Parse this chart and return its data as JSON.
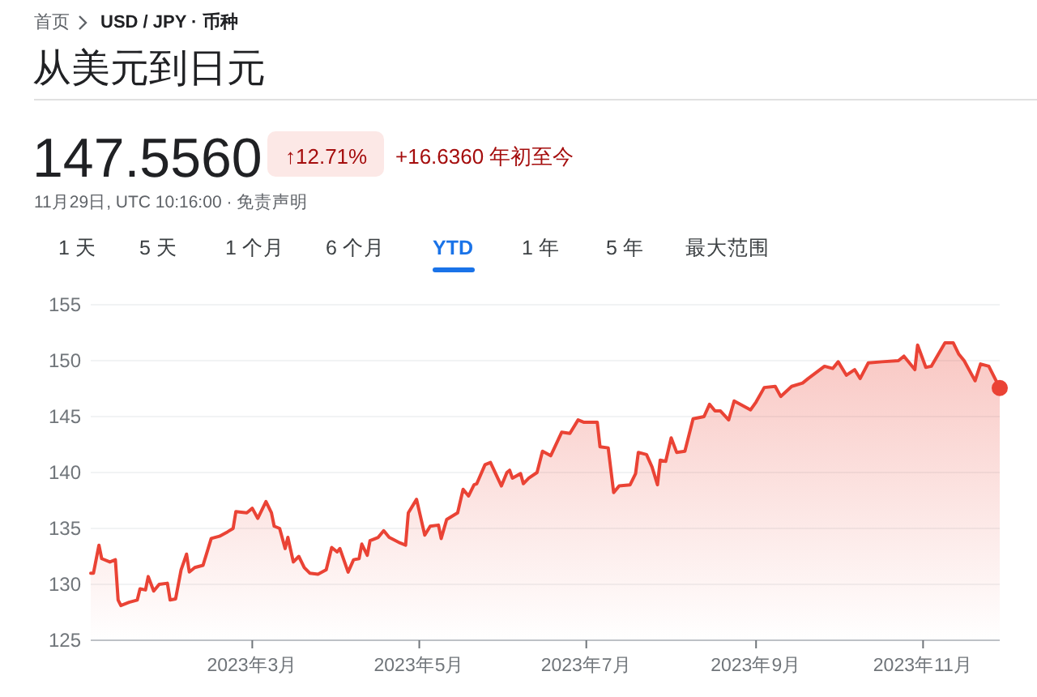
{
  "chart_data": {
    "type": "area",
    "title": "从美元到日元",
    "annotations": [
      "首页",
      "USD / JPY · 币种",
      "147.5560",
      "↑12.71%",
      "+16.6360 年初至今",
      "11月29日, UTC 10:16:00 · 免责声明",
      "1 天",
      "5 天",
      "1 个月",
      "6 个月",
      "YTD",
      "1 年",
      "5 年",
      "最大范围"
    ],
    "x": [
      "2023-01-01",
      "2023-01-02",
      "2023-01-04",
      "2023-01-05",
      "2023-01-08",
      "2023-01-10",
      "2023-01-11",
      "2023-01-12",
      "2023-01-15",
      "2023-01-18",
      "2023-01-19",
      "2023-01-21",
      "2023-01-22",
      "2023-01-24",
      "2023-01-26",
      "2023-01-29",
      "2023-01-30",
      "2023-02-01",
      "2023-02-03",
      "2023-02-05",
      "2023-02-06",
      "2023-02-08",
      "2023-02-11",
      "2023-02-14",
      "2023-02-17",
      "2023-02-20",
      "2023-02-22",
      "2023-02-23",
      "2023-02-27",
      "2023-03-01",
      "2023-03-03",
      "2023-03-06",
      "2023-03-08",
      "2023-03-09",
      "2023-03-11",
      "2023-03-13",
      "2023-03-14",
      "2023-03-16",
      "2023-03-18",
      "2023-03-20",
      "2023-03-22",
      "2023-03-25",
      "2023-03-28",
      "2023-03-30",
      "2023-04-01",
      "2023-04-02",
      "2023-04-05",
      "2023-04-07",
      "2023-04-09",
      "2023-04-10",
      "2023-04-12",
      "2023-04-13",
      "2023-04-16",
      "2023-04-18",
      "2023-04-20",
      "2023-04-24",
      "2023-04-26",
      "2023-04-27",
      "2023-04-30",
      "2023-05-03",
      "2023-05-05",
      "2023-05-08",
      "2023-05-09",
      "2023-05-11",
      "2023-05-15",
      "2023-05-17",
      "2023-05-19",
      "2023-05-21",
      "2023-05-22",
      "2023-05-25",
      "2023-05-27",
      "2023-05-31",
      "2023-06-02",
      "2023-06-03",
      "2023-06-04",
      "2023-06-07",
      "2023-06-08",
      "2023-06-10",
      "2023-06-13",
      "2023-06-15",
      "2023-06-18",
      "2023-06-22",
      "2023-06-25",
      "2023-06-28",
      "2023-06-30",
      "2023-07-05",
      "2023-07-06",
      "2023-07-09",
      "2023-07-11",
      "2023-07-13",
      "2023-07-17",
      "2023-07-19",
      "2023-07-20",
      "2023-07-23",
      "2023-07-25",
      "2023-07-27",
      "2023-07-28",
      "2023-07-30",
      "2023-08-01",
      "2023-08-03",
      "2023-08-06",
      "2023-08-09",
      "2023-08-13",
      "2023-08-15",
      "2023-08-17",
      "2023-08-19",
      "2023-08-22",
      "2023-08-24",
      "2023-08-27",
      "2023-08-30",
      "2023-09-01",
      "2023-09-04",
      "2023-09-08",
      "2023-09-10",
      "2023-09-14",
      "2023-09-18",
      "2023-09-20",
      "2023-09-26",
      "2023-09-29",
      "2023-10-01",
      "2023-10-04",
      "2023-10-07",
      "2023-10-09",
      "2023-10-12",
      "2023-10-17",
      "2023-10-23",
      "2023-10-25",
      "2023-10-29",
      "2023-10-30",
      "2023-11-02",
      "2023-11-04",
      "2023-11-09",
      "2023-11-12",
      "2023-11-14",
      "2023-11-16",
      "2023-11-20",
      "2023-11-22",
      "2023-11-25",
      "2023-11-29"
    ],
    "series": [
      {
        "color": "#ea4335",
        "values": [
          131.0,
          131.0,
          133.5,
          132.3,
          132.0,
          132.2,
          128.6,
          128.1,
          128.4,
          128.6,
          129.6,
          129.5,
          130.7,
          129.4,
          130.0,
          130.1,
          128.6,
          128.7,
          131.3,
          132.7,
          131.1,
          131.5,
          131.7,
          134.1,
          134.3,
          134.7,
          135.0,
          136.5,
          136.4,
          136.8,
          135.9,
          137.4,
          136.4,
          135.2,
          135.0,
          133.2,
          134.2,
          132.0,
          132.5,
          131.5,
          131.0,
          130.9,
          131.3,
          133.3,
          132.9,
          133.2,
          131.1,
          132.2,
          132.3,
          133.6,
          132.6,
          133.9,
          134.2,
          134.8,
          134.2,
          133.7,
          133.5,
          136.4,
          137.6,
          134.4,
          135.2,
          135.3,
          134.1,
          135.8,
          136.4,
          138.5,
          137.9,
          138.9,
          139.0,
          140.7,
          140.9,
          138.8,
          140.0,
          140.2,
          139.5,
          139.9,
          139.0,
          139.5,
          140.0,
          141.9,
          141.5,
          143.6,
          143.5,
          144.7,
          144.5,
          144.5,
          142.3,
          142.2,
          138.2,
          138.8,
          138.9,
          139.9,
          141.8,
          141.6,
          140.5,
          138.9,
          141.1,
          141.0,
          143.1,
          141.8,
          141.9,
          144.8,
          145.0,
          146.1,
          145.5,
          145.5,
          144.7,
          146.4,
          146.0,
          145.6,
          146.3,
          147.6,
          147.7,
          146.8,
          147.7,
          148.0,
          148.4,
          149.5,
          149.3,
          149.9,
          148.7,
          149.2,
          148.4,
          149.8,
          149.9,
          150.0,
          150.4,
          149.2,
          151.4,
          149.4,
          149.5,
          151.6,
          151.6,
          150.6,
          150.0,
          148.2,
          149.7,
          149.5,
          147.556
        ]
      }
    ],
    "xlim": [
      "2023-01-01",
      "2023-11-29"
    ],
    "xticks": [
      {
        "value": "2023-03-01",
        "label": "2023年3月"
      },
      {
        "value": "2023-05-01",
        "label": "2023年5月"
      },
      {
        "value": "2023-07-01",
        "label": "2023年7月"
      },
      {
        "value": "2023-09-01",
        "label": "2023年9月"
      },
      {
        "value": "2023-11-01",
        "label": "2023年11月"
      }
    ],
    "ylim": [
      125,
      155
    ],
    "yticks": [
      125,
      130,
      135,
      140,
      145,
      150,
      155
    ],
    "grid": "y"
  }
}
